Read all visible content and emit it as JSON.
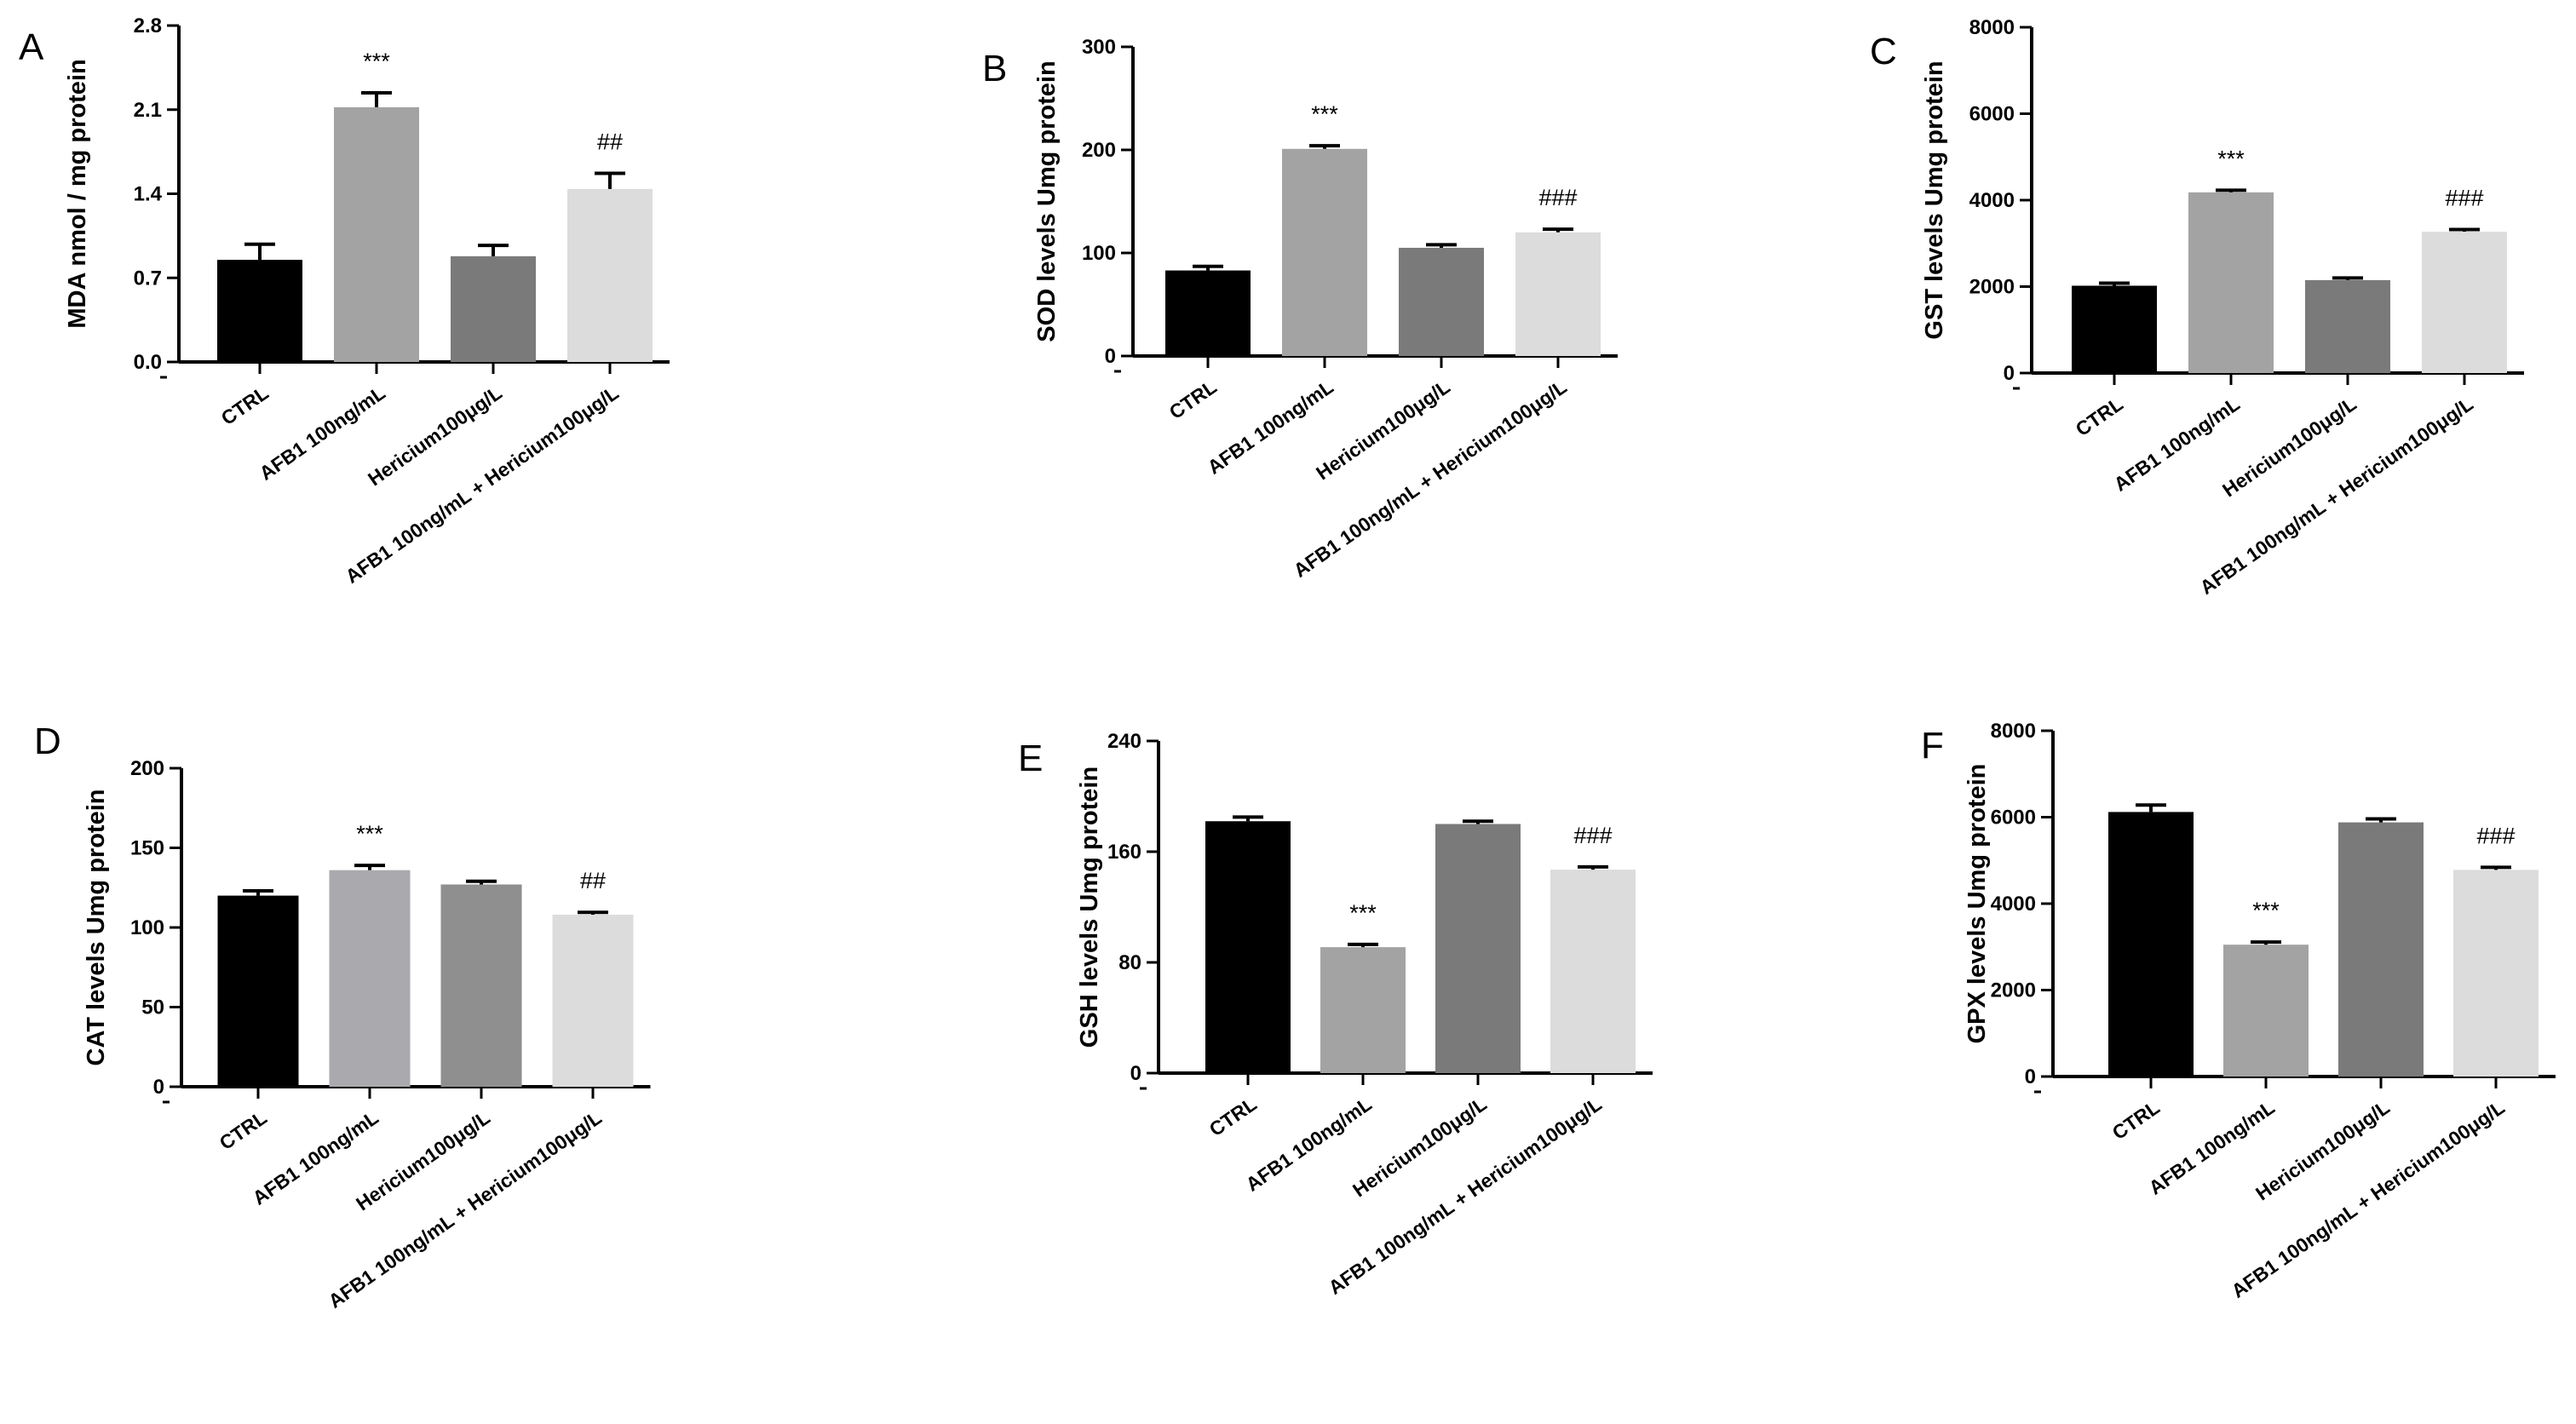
{
  "figure": {
    "panel_count": 6
  },
  "chart_data": [
    {
      "panel": "A",
      "type": "bar",
      "ylabel": "MDA nmol / mg protein",
      "ylim": [
        0,
        2.8
      ],
      "yticks": [
        "0.0",
        "0.7",
        "1.4",
        "2.1",
        "2.8"
      ],
      "categories": [
        "CTRL",
        "AFB1 100ng/mL",
        "Hericium100μg/L",
        "AFB1 100ng/mL + Hericium100μg/L"
      ],
      "values": [
        0.85,
        2.12,
        0.88,
        1.44
      ],
      "errors": [
        0.13,
        0.12,
        0.09,
        0.13
      ],
      "annotations": [
        "",
        "***",
        "",
        "##"
      ],
      "colors": [
        "#000000",
        "#a3a3a3",
        "#7a7a7a",
        "#dcdcdc"
      ]
    },
    {
      "panel": "B",
      "type": "bar",
      "ylabel": "SOD levels Umg protein",
      "ylim": [
        0,
        300
      ],
      "yticks": [
        "0",
        "100",
        "200",
        "300"
      ],
      "categories": [
        "CTRL",
        "AFB1 100ng/mL",
        "Hericium100μg/L",
        "AFB1 100ng/mL + Hericium100μg/L"
      ],
      "values": [
        83,
        201,
        105,
        120
      ],
      "errors": [
        4,
        3,
        3,
        3
      ],
      "annotations": [
        "",
        "***",
        "",
        "###"
      ],
      "colors": [
        "#000000",
        "#a3a3a3",
        "#7a7a7a",
        "#dcdcdc"
      ]
    },
    {
      "panel": "C",
      "type": "bar",
      "ylabel": "GST levels Umg protein",
      "ylim": [
        0,
        8000
      ],
      "yticks": [
        "0",
        "2000",
        "4000",
        "6000",
        "8000"
      ],
      "categories": [
        "CTRL",
        "AFB1 100ng/mL",
        "Hericium100μg/L",
        "AFB1 100ng/mL + Hericium100μg/L"
      ],
      "values": [
        2020,
        4180,
        2150,
        3270
      ],
      "errors": [
        60,
        50,
        50,
        50
      ],
      "annotations": [
        "",
        "***",
        "",
        "###"
      ],
      "colors": [
        "#000000",
        "#a3a3a3",
        "#7a7a7a",
        "#dcdcdc"
      ]
    },
    {
      "panel": "D",
      "type": "bar",
      "ylabel": "CAT levels Umg protein",
      "ylim": [
        0,
        200
      ],
      "yticks": [
        "0",
        "50",
        "100",
        "150",
        "200"
      ],
      "categories": [
        "CTRL",
        "AFB1 100ng/mL",
        "Hericium100μg/L",
        "AFB1 100ng/mL + Hericium100μg/L"
      ],
      "values": [
        120,
        136,
        127,
        108
      ],
      "errors": [
        3,
        3,
        2,
        1.5
      ],
      "annotations": [
        "",
        "***",
        "",
        "##"
      ],
      "colors": [
        "#000000",
        "#aaaaae",
        "#8f8f8f",
        "#dcdcdc"
      ]
    },
    {
      "panel": "E",
      "type": "bar",
      "ylabel": "GSH levels Umg protein",
      "ylim": [
        0,
        240
      ],
      "yticks": [
        "0",
        "80",
        "160",
        "240"
      ],
      "categories": [
        "CTRL",
        "AFB1 100ng/mL",
        "Hericium100μg/L",
        "AFB1 100ng/mL + Hericium100μg/L"
      ],
      "values": [
        182,
        91,
        180,
        147
      ],
      "errors": [
        3,
        2,
        2,
        2
      ],
      "annotations": [
        "",
        "***",
        "",
        "###"
      ],
      "colors": [
        "#000000",
        "#a3a3a3",
        "#7a7a7a",
        "#dcdcdc"
      ]
    },
    {
      "panel": "F",
      "type": "bar",
      "ylabel": "GPX levels Umg protein",
      "ylim": [
        0,
        8000
      ],
      "yticks": [
        "0",
        "2000",
        "4000",
        "6000",
        "8000"
      ],
      "categories": [
        "CTRL",
        "AFB1 100ng/mL",
        "Hericium100μg/L",
        "AFB1 100ng/mL + Hericium100μg/L"
      ],
      "values": [
        6120,
        3050,
        5880,
        4780
      ],
      "errors": [
        160,
        60,
        80,
        60
      ],
      "annotations": [
        "",
        "***",
        "",
        "###"
      ],
      "colors": [
        "#000000",
        "#a3a3a3",
        "#7a7a7a",
        "#dcdcdc"
      ]
    }
  ]
}
